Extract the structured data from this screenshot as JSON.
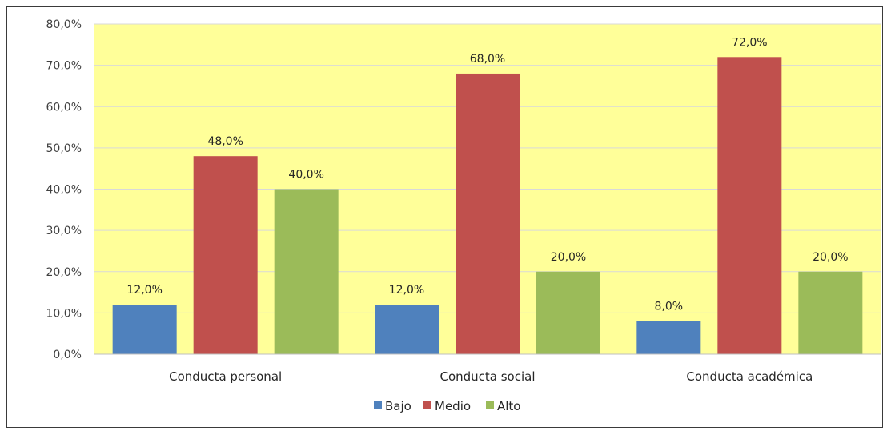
{
  "chart_data": {
    "type": "bar",
    "categories": [
      "Conducta personal",
      "Conducta social",
      "Conducta académica"
    ],
    "series": [
      {
        "name": "Bajo",
        "values": [
          12.0,
          12.0,
          8.0
        ],
        "labels": [
          "12,0%",
          "12,0%",
          "8,0%"
        ],
        "color": "#4f81bd"
      },
      {
        "name": "Medio",
        "values": [
          48.0,
          68.0,
          72.0
        ],
        "labels": [
          "48,0%",
          "68,0%",
          "72,0%"
        ],
        "color": "#c0504d"
      },
      {
        "name": "Alto",
        "values": [
          40.0,
          20.0,
          20.0
        ],
        "labels": [
          "40,0%",
          "20,0%",
          "20,0%"
        ],
        "color": "#9bbb59"
      }
    ],
    "yticks": [
      "0,0%",
      "10,0%",
      "20,0%",
      "30,0%",
      "40,0%",
      "50,0%",
      "60,0%",
      "70,0%",
      "80,0%"
    ],
    "ylim": [
      0,
      80
    ],
    "title": "",
    "xlabel": "",
    "ylabel": "",
    "grid": true,
    "legend": "bottom",
    "plot_background": "#ffff99",
    "grid_color": "#d9d9d9"
  }
}
